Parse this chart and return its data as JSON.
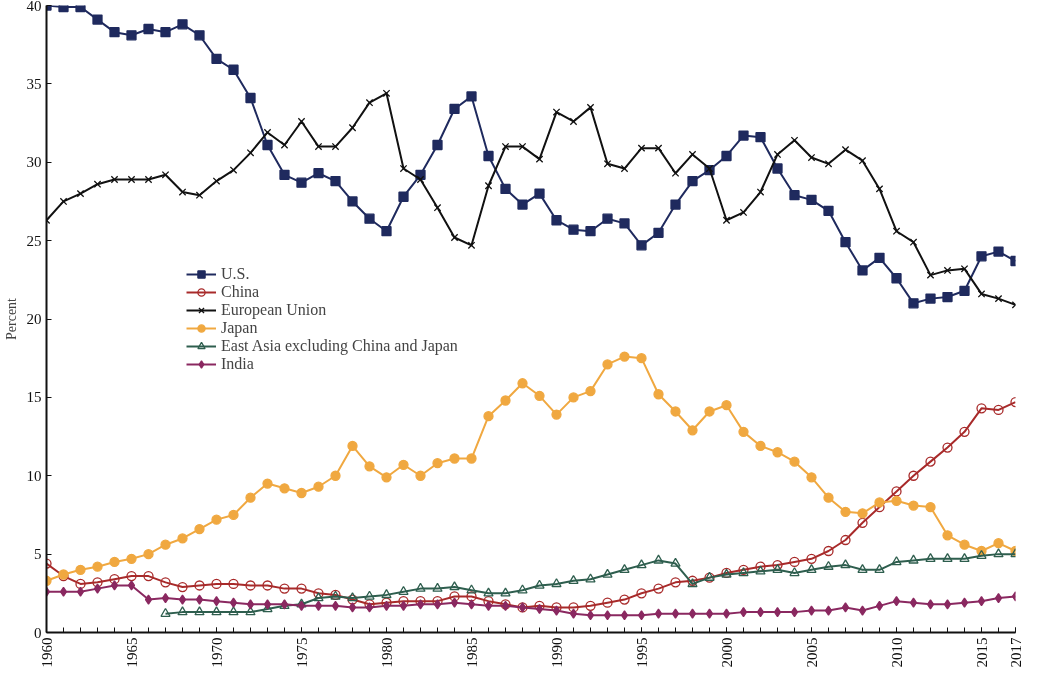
{
  "chart_data": {
    "type": "line",
    "ylabel": "Percent",
    "x": [
      1960,
      1961,
      1962,
      1963,
      1964,
      1965,
      1966,
      1967,
      1968,
      1969,
      1970,
      1971,
      1972,
      1973,
      1974,
      1975,
      1976,
      1977,
      1978,
      1979,
      1980,
      1981,
      1982,
      1983,
      1984,
      1985,
      1986,
      1987,
      1988,
      1989,
      1990,
      1991,
      1992,
      1993,
      1994,
      1995,
      1996,
      1997,
      1998,
      1999,
      2000,
      2001,
      2002,
      2003,
      2004,
      2005,
      2006,
      2007,
      2008,
      2009,
      2010,
      2011,
      2012,
      2013,
      2014,
      2015,
      2016,
      2017
    ],
    "xlim": [
      1960,
      2017
    ],
    "xticks": [
      1960,
      1965,
      1970,
      1975,
      1980,
      1985,
      1990,
      1995,
      2000,
      2005,
      2010,
      2015,
      2017
    ],
    "ylim": [
      0,
      40
    ],
    "yticks": [
      0,
      5,
      10,
      15,
      20,
      25,
      30,
      35,
      40
    ],
    "grid": false,
    "legend": "left",
    "series": [
      {
        "name": "U.S.",
        "color": "#1f2a5e",
        "marker": "square",
        "values": [
          40,
          39.9,
          39.9,
          39.1,
          38.3,
          38.1,
          38.5,
          38.3,
          38.8,
          38.1,
          36.6,
          35.9,
          34.1,
          31.1,
          29.2,
          28.7,
          29.3,
          28.8,
          27.5,
          26.4,
          25.6,
          27.8,
          29.2,
          31.1,
          33.4,
          34.2,
          30.4,
          28.3,
          27.3,
          28.0,
          26.3,
          25.7,
          25.6,
          26.4,
          26.1,
          24.7,
          25.5,
          27.3,
          28.8,
          29.5,
          30.4,
          31.7,
          31.6,
          29.6,
          27.9,
          27.6,
          26.9,
          24.9,
          23.1,
          23.9,
          22.6,
          21.0,
          21.3,
          21.4,
          21.8,
          24.0,
          24.3,
          23.7
        ]
      },
      {
        "name": "China",
        "color": "#a82a2a",
        "marker": "circle",
        "values": [
          4.4,
          3.6,
          3.1,
          3.2,
          3.4,
          3.6,
          3.6,
          3.2,
          2.9,
          3.0,
          3.1,
          3.1,
          3.0,
          3.0,
          2.8,
          2.8,
          2.5,
          2.4,
          2.1,
          1.8,
          1.9,
          2.0,
          2.0,
          2.0,
          2.3,
          2.3,
          2.0,
          1.8,
          1.6,
          1.7,
          1.6,
          1.6,
          1.7,
          1.9,
          2.1,
          2.5,
          2.8,
          3.2,
          3.3,
          3.5,
          3.8,
          4.0,
          4.2,
          4.3,
          4.5,
          4.7,
          5.2,
          5.9,
          7.0,
          8.0,
          9.0,
          10.0,
          10.9,
          11.8,
          12.8,
          14.3,
          14.2,
          14.7
        ]
      },
      {
        "name": "European Union",
        "color": "#111111",
        "marker": "cross",
        "values": [
          26.3,
          27.5,
          28.0,
          28.6,
          28.9,
          28.9,
          28.9,
          29.2,
          28.1,
          27.9,
          28.8,
          29.5,
          30.6,
          31.9,
          31.1,
          32.6,
          31.0,
          31.0,
          32.2,
          33.8,
          34.4,
          29.6,
          28.9,
          27.1,
          25.2,
          24.7,
          28.5,
          31.0,
          31.0,
          30.2,
          33.2,
          32.6,
          33.5,
          29.9,
          29.6,
          30.9,
          30.9,
          29.3,
          30.5,
          29.6,
          26.3,
          26.8,
          28.1,
          30.5,
          31.4,
          30.3,
          29.9,
          30.8,
          30.1,
          28.3,
          25.6,
          24.9,
          22.8,
          23.1,
          23.2,
          21.6,
          21.3,
          20.9
        ]
      },
      {
        "name": "Japan",
        "color": "#f0a840",
        "marker": "circle",
        "values": [
          3.3,
          3.7,
          4.0,
          4.2,
          4.5,
          4.7,
          5.0,
          5.6,
          6.0,
          6.6,
          7.2,
          7.5,
          8.6,
          9.5,
          9.2,
          8.9,
          9.3,
          10.0,
          11.9,
          10.6,
          9.9,
          10.7,
          10.0,
          10.8,
          11.1,
          11.1,
          13.8,
          14.8,
          15.9,
          15.1,
          13.9,
          15.0,
          15.4,
          17.1,
          17.6,
          17.5,
          15.2,
          14.1,
          12.9,
          14.1,
          14.5,
          12.8,
          11.9,
          11.5,
          10.9,
          9.9,
          8.6,
          7.7,
          7.6,
          8.3,
          8.4,
          8.1,
          8.0,
          6.2,
          5.6,
          5.2,
          5.7,
          5.2
        ]
      },
      {
        "name": "East Asia excluding China and Japan",
        "color": "#2e5e4e",
        "marker": "triangle",
        "values": [
          null,
          null,
          null,
          null,
          null,
          null,
          null,
          1.2,
          1.3,
          1.3,
          1.3,
          1.3,
          1.3,
          1.5,
          1.7,
          1.8,
          2.2,
          2.3,
          2.2,
          2.3,
          2.4,
          2.6,
          2.8,
          2.8,
          2.9,
          2.7,
          2.5,
          2.5,
          2.7,
          3.0,
          3.1,
          3.3,
          3.4,
          3.7,
          4.0,
          4.3,
          4.6,
          4.4,
          3.1,
          3.5,
          3.7,
          3.8,
          3.9,
          4.0,
          3.8,
          4.0,
          4.2,
          4.3,
          4.0,
          4.0,
          4.5,
          4.6,
          4.7,
          4.7,
          4.7,
          4.9,
          5.0,
          5.0
        ]
      },
      {
        "name": "India",
        "color": "#8a2860",
        "marker": "diamond",
        "values": [
          2.6,
          2.6,
          2.6,
          2.8,
          3.0,
          3.0,
          2.1,
          2.2,
          2.1,
          2.1,
          2.0,
          1.9,
          1.8,
          1.8,
          1.8,
          1.7,
          1.7,
          1.7,
          1.6,
          1.6,
          1.7,
          1.7,
          1.8,
          1.8,
          1.9,
          1.8,
          1.7,
          1.7,
          1.6,
          1.5,
          1.4,
          1.2,
          1.1,
          1.1,
          1.1,
          1.1,
          1.2,
          1.2,
          1.2,
          1.2,
          1.2,
          1.3,
          1.3,
          1.3,
          1.3,
          1.4,
          1.4,
          1.6,
          1.4,
          1.7,
          2.0,
          1.9,
          1.8,
          1.8,
          1.9,
          2.0,
          2.2,
          2.3
        ]
      }
    ]
  }
}
